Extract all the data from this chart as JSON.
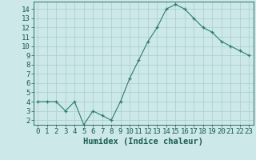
{
  "x": [
    0,
    1,
    2,
    3,
    4,
    5,
    6,
    7,
    8,
    9,
    10,
    11,
    12,
    13,
    14,
    15,
    16,
    17,
    18,
    19,
    20,
    21,
    22,
    23
  ],
  "y": [
    4.0,
    4.0,
    4.0,
    3.0,
    4.0,
    1.5,
    3.0,
    2.5,
    2.0,
    4.0,
    6.5,
    8.5,
    10.5,
    12.0,
    14.0,
    14.5,
    14.0,
    13.0,
    12.0,
    11.5,
    10.5,
    10.0,
    9.5,
    9.0
  ],
  "line_color": "#2e7d6e",
  "marker": "+",
  "bg_color": "#cce8e8",
  "grid_color": "#aacece",
  "xlabel": "Humidex (Indice chaleur)",
  "ylim": [
    1.5,
    14.8
  ],
  "xlim": [
    -0.5,
    23.5
  ],
  "yticks": [
    2,
    3,
    4,
    5,
    6,
    7,
    8,
    9,
    10,
    11,
    12,
    13,
    14
  ],
  "xticks": [
    0,
    1,
    2,
    3,
    4,
    5,
    6,
    7,
    8,
    9,
    10,
    11,
    12,
    13,
    14,
    15,
    16,
    17,
    18,
    19,
    20,
    21,
    22,
    23
  ],
  "tick_label_color": "#1a5c52",
  "xlabel_fontsize": 7.5,
  "tick_fontsize": 6.5
}
